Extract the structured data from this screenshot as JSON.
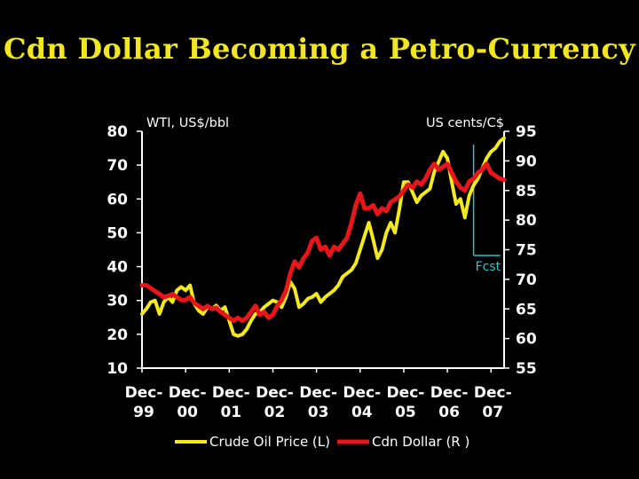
{
  "title": "Cdn Dollar Becoming a Petro-Currency",
  "colors": {
    "background": "#000000",
    "title": "#f2e61e",
    "oil_series": "#f2ea1c",
    "cad_series": "#e8161b",
    "forecast_marker": "#2cc3c9",
    "axis": "#ffffff"
  },
  "chart_data": {
    "type": "line",
    "left_axis_label": "WTI, US$/bbl",
    "right_axis_label": "US cents/C$",
    "left_ylim": [
      10,
      80
    ],
    "left_ticks": [
      "80",
      "70",
      "60",
      "50",
      "40",
      "30",
      "20",
      "10"
    ],
    "right_ylim": [
      55,
      95
    ],
    "right_ticks": [
      "95",
      "90",
      "85",
      "80",
      "75",
      "70",
      "65",
      "60",
      "55"
    ],
    "x_ticks": [
      {
        "line1": "Dec-",
        "line2": "99"
      },
      {
        "line1": "Dec-",
        "line2": "00"
      },
      {
        "line1": "Dec-",
        "line2": "01"
      },
      {
        "line1": "Dec-",
        "line2": "02"
      },
      {
        "line1": "Dec-",
        "line2": "03"
      },
      {
        "line1": "Dec-",
        "line2": "04"
      },
      {
        "line1": "Dec-",
        "line2": "05"
      },
      {
        "line1": "Dec-",
        "line2": "06"
      },
      {
        "line1": "Dec-",
        "line2": "07"
      }
    ],
    "forecast_label": "Fcst",
    "forecast_start": 7.6,
    "grid": false,
    "legend_position": "bottom",
    "series": [
      {
        "name": "Crude Oil Price (L)",
        "axis": "left",
        "points": [
          [
            0,
            26
          ],
          [
            0.1,
            27.5
          ],
          [
            0.2,
            29.5
          ],
          [
            0.3,
            30
          ],
          [
            0.4,
            26
          ],
          [
            0.5,
            29.5
          ],
          [
            0.6,
            31
          ],
          [
            0.7,
            29.5
          ],
          [
            0.8,
            33
          ],
          [
            0.9,
            34
          ],
          [
            1.0,
            33
          ],
          [
            1.1,
            34.5
          ],
          [
            1.2,
            29
          ],
          [
            1.3,
            27
          ],
          [
            1.4,
            26
          ],
          [
            1.5,
            28
          ],
          [
            1.6,
            27.5
          ],
          [
            1.7,
            28.5
          ],
          [
            1.8,
            27
          ],
          [
            1.9,
            28
          ],
          [
            2.0,
            24
          ],
          [
            2.1,
            20
          ],
          [
            2.2,
            19.5
          ],
          [
            2.3,
            20
          ],
          [
            2.4,
            21.5
          ],
          [
            2.5,
            24
          ],
          [
            2.6,
            26
          ],
          [
            2.7,
            26.5
          ],
          [
            2.8,
            28
          ],
          [
            2.9,
            29
          ],
          [
            3.0,
            30
          ],
          [
            3.1,
            29.5
          ],
          [
            3.2,
            28
          ],
          [
            3.3,
            31
          ],
          [
            3.4,
            35.5
          ],
          [
            3.5,
            33.5
          ],
          [
            3.6,
            28
          ],
          [
            3.7,
            29
          ],
          [
            3.8,
            30.5
          ],
          [
            3.9,
            31
          ],
          [
            4.0,
            32
          ],
          [
            4.1,
            29.5
          ],
          [
            4.2,
            31
          ],
          [
            4.3,
            32
          ],
          [
            4.4,
            33
          ],
          [
            4.5,
            34.5
          ],
          [
            4.6,
            37
          ],
          [
            4.7,
            38
          ],
          [
            4.8,
            39
          ],
          [
            4.9,
            41
          ],
          [
            5.0,
            45
          ],
          [
            5.1,
            49
          ],
          [
            5.2,
            53
          ],
          [
            5.3,
            48
          ],
          [
            5.4,
            42.5
          ],
          [
            5.5,
            45
          ],
          [
            5.6,
            50
          ],
          [
            5.7,
            53
          ],
          [
            5.8,
            50
          ],
          [
            5.9,
            57
          ],
          [
            6.0,
            65
          ],
          [
            6.1,
            65
          ],
          [
            6.2,
            62
          ],
          [
            6.3,
            59
          ],
          [
            6.4,
            61
          ],
          [
            6.5,
            62
          ],
          [
            6.6,
            63
          ],
          [
            6.7,
            68
          ],
          [
            6.8,
            71
          ],
          [
            6.9,
            74
          ],
          [
            7.0,
            72
          ],
          [
            7.1,
            65
          ],
          [
            7.2,
            58.5
          ],
          [
            7.3,
            60
          ],
          [
            7.4,
            54.5
          ],
          [
            7.5,
            61
          ],
          [
            7.6,
            64
          ],
          [
            7.7,
            66
          ],
          [
            7.8,
            69
          ],
          [
            7.9,
            72
          ],
          [
            8.0,
            74
          ],
          [
            8.1,
            75
          ],
          [
            8.2,
            77
          ],
          [
            8.3,
            78
          ]
        ]
      },
      {
        "name": "Cdn Dollar (R )",
        "axis": "right",
        "points": [
          [
            0,
            69
          ],
          [
            0.1,
            69
          ],
          [
            0.2,
            68.5
          ],
          [
            0.3,
            68
          ],
          [
            0.4,
            67.5
          ],
          [
            0.5,
            67
          ],
          [
            0.6,
            67.2
          ],
          [
            0.7,
            67.5
          ],
          [
            0.8,
            67
          ],
          [
            0.9,
            66.5
          ],
          [
            1.0,
            66.5
          ],
          [
            1.1,
            67
          ],
          [
            1.2,
            66
          ],
          [
            1.3,
            65.5
          ],
          [
            1.4,
            65
          ],
          [
            1.5,
            65.5
          ],
          [
            1.6,
            65
          ],
          [
            1.7,
            65.2
          ],
          [
            1.8,
            64.5
          ],
          [
            1.9,
            64
          ],
          [
            2.0,
            63.5
          ],
          [
            2.1,
            63
          ],
          [
            2.2,
            63.5
          ],
          [
            2.3,
            63
          ],
          [
            2.4,
            63.5
          ],
          [
            2.5,
            64.5
          ],
          [
            2.6,
            65.5
          ],
          [
            2.7,
            64
          ],
          [
            2.8,
            64.5
          ],
          [
            2.9,
            63.5
          ],
          [
            3.0,
            64
          ],
          [
            3.1,
            65.5
          ],
          [
            3.2,
            66.5
          ],
          [
            3.3,
            68
          ],
          [
            3.4,
            71
          ],
          [
            3.5,
            73
          ],
          [
            3.6,
            72
          ],
          [
            3.7,
            73.5
          ],
          [
            3.8,
            74.5
          ],
          [
            3.9,
            76.5
          ],
          [
            4.0,
            77
          ],
          [
            4.1,
            75
          ],
          [
            4.2,
            75.5
          ],
          [
            4.3,
            74
          ],
          [
            4.4,
            75.5
          ],
          [
            4.5,
            75
          ],
          [
            4.6,
            76
          ],
          [
            4.7,
            77
          ],
          [
            4.8,
            79.5
          ],
          [
            4.9,
            82.5
          ],
          [
            5.0,
            84.5
          ],
          [
            5.1,
            82
          ],
          [
            5.2,
            82
          ],
          [
            5.3,
            82.5
          ],
          [
            5.4,
            81
          ],
          [
            5.5,
            82
          ],
          [
            5.6,
            81.5
          ],
          [
            5.7,
            83
          ],
          [
            5.8,
            83.5
          ],
          [
            5.9,
            84
          ],
          [
            6.0,
            85
          ],
          [
            6.1,
            86
          ],
          [
            6.2,
            85.5
          ],
          [
            6.3,
            86.5
          ],
          [
            6.4,
            86
          ],
          [
            6.5,
            87
          ],
          [
            6.6,
            88.5
          ],
          [
            6.7,
            89.5
          ],
          [
            6.8,
            88.5
          ],
          [
            6.9,
            89
          ],
          [
            7.0,
            89.5
          ],
          [
            7.1,
            88
          ],
          [
            7.2,
            86.5
          ],
          [
            7.3,
            85.5
          ],
          [
            7.4,
            85
          ],
          [
            7.5,
            86.5
          ],
          [
            7.6,
            87
          ],
          [
            7.7,
            88
          ],
          [
            7.8,
            88.5
          ],
          [
            7.9,
            89.5
          ],
          [
            8.0,
            88
          ],
          [
            8.1,
            87.5
          ],
          [
            8.2,
            87
          ],
          [
            8.3,
            86.8
          ]
        ]
      }
    ]
  }
}
